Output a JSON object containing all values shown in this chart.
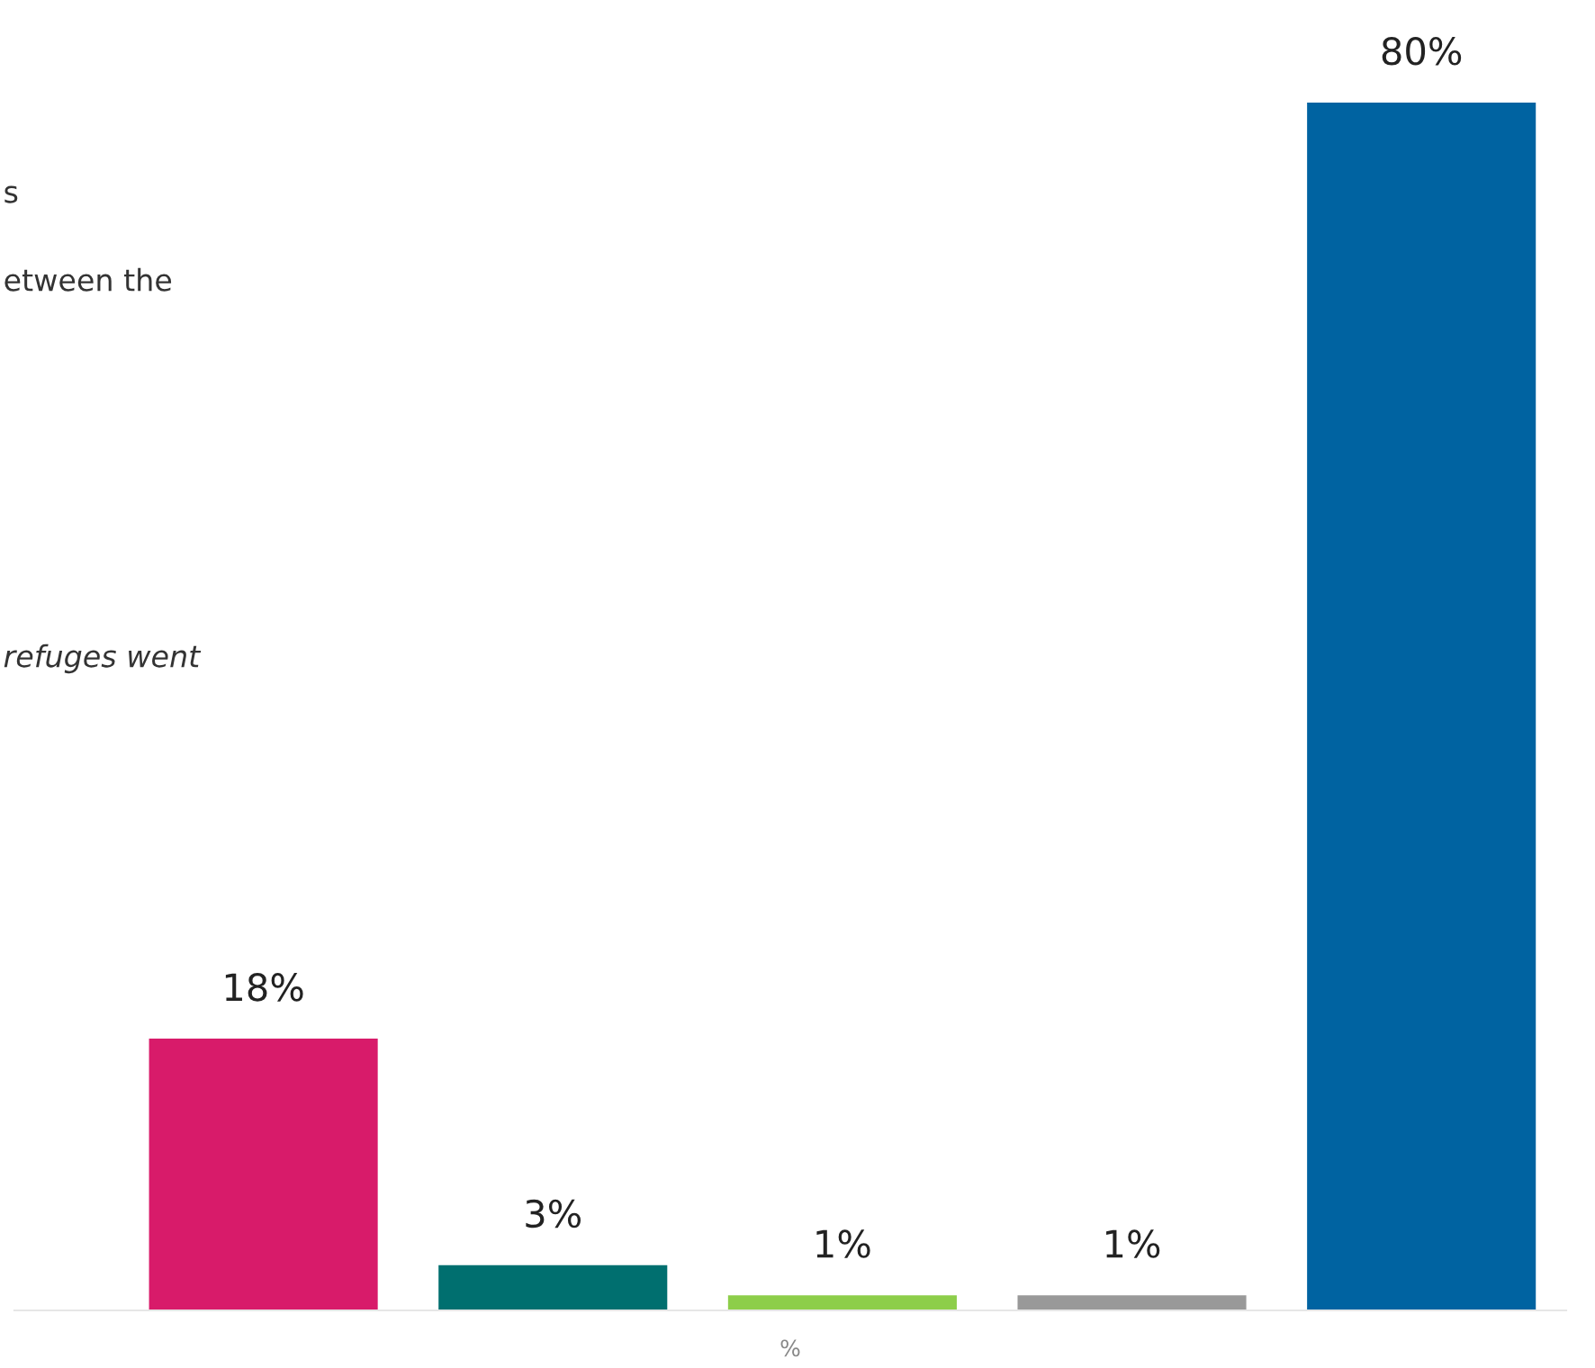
{
  "chart_data": {
    "type": "bar",
    "xlabel": "%",
    "categories": [
      null,
      null,
      null,
      null,
      null
    ],
    "values": [
      18,
      3,
      1,
      1,
      80
    ],
    "colors": [
      "#d81b6a",
      "#006f6f",
      "#8dce4a",
      "#999999",
      "#0063a1"
    ],
    "value_labels": [
      "18%",
      "3%",
      "1%",
      "1%",
      "80%"
    ],
    "grid": false,
    "legend": false,
    "annotations": [
      "s",
      "etween the",
      "refuges went"
    ]
  }
}
